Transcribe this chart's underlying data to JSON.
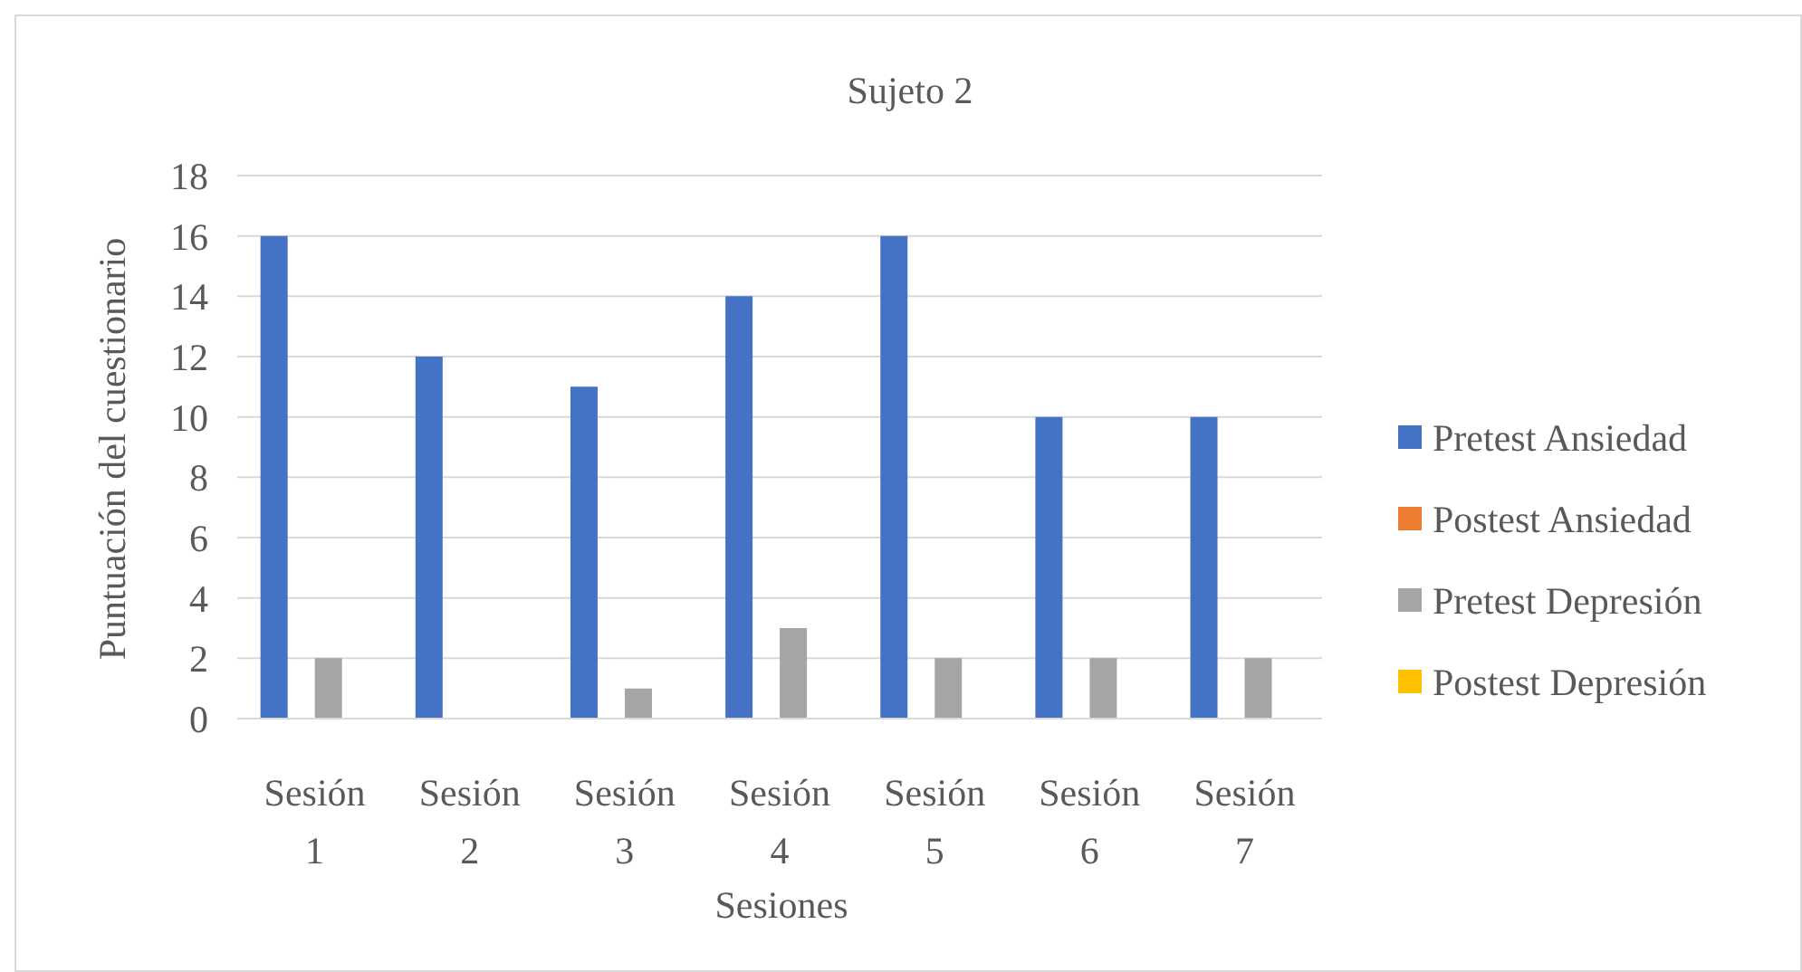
{
  "chart_data": {
    "type": "bar",
    "title": "Sujeto 2",
    "xlabel": "Sesiones",
    "ylabel": "Puntuación del cuestionario",
    "categories": [
      "Sesión 1",
      "Sesión 2",
      "Sesión 3",
      "Sesión 4",
      "Sesión 5",
      "Sesión 6",
      "Sesión 7"
    ],
    "series": [
      {
        "name": "Pretest Ansiedad",
        "color": "#4472c4",
        "values": [
          16,
          12,
          11,
          14,
          16,
          10,
          10
        ]
      },
      {
        "name": "Postest Ansiedad",
        "color": "#ed7d31",
        "values": [
          null,
          null,
          null,
          null,
          null,
          null,
          null
        ]
      },
      {
        "name": "Pretest Depresión",
        "color": "#a5a5a5",
        "values": [
          2,
          null,
          1,
          3,
          2,
          2,
          2
        ]
      },
      {
        "name": "Postest Depresión",
        "color": "#ffc000",
        "values": [
          null,
          null,
          null,
          null,
          null,
          null,
          null
        ]
      }
    ],
    "ylim": [
      0,
      18
    ],
    "yticks": [
      0,
      2,
      4,
      6,
      8,
      10,
      12,
      14,
      16,
      18
    ],
    "grid": "y",
    "legend": "right"
  }
}
